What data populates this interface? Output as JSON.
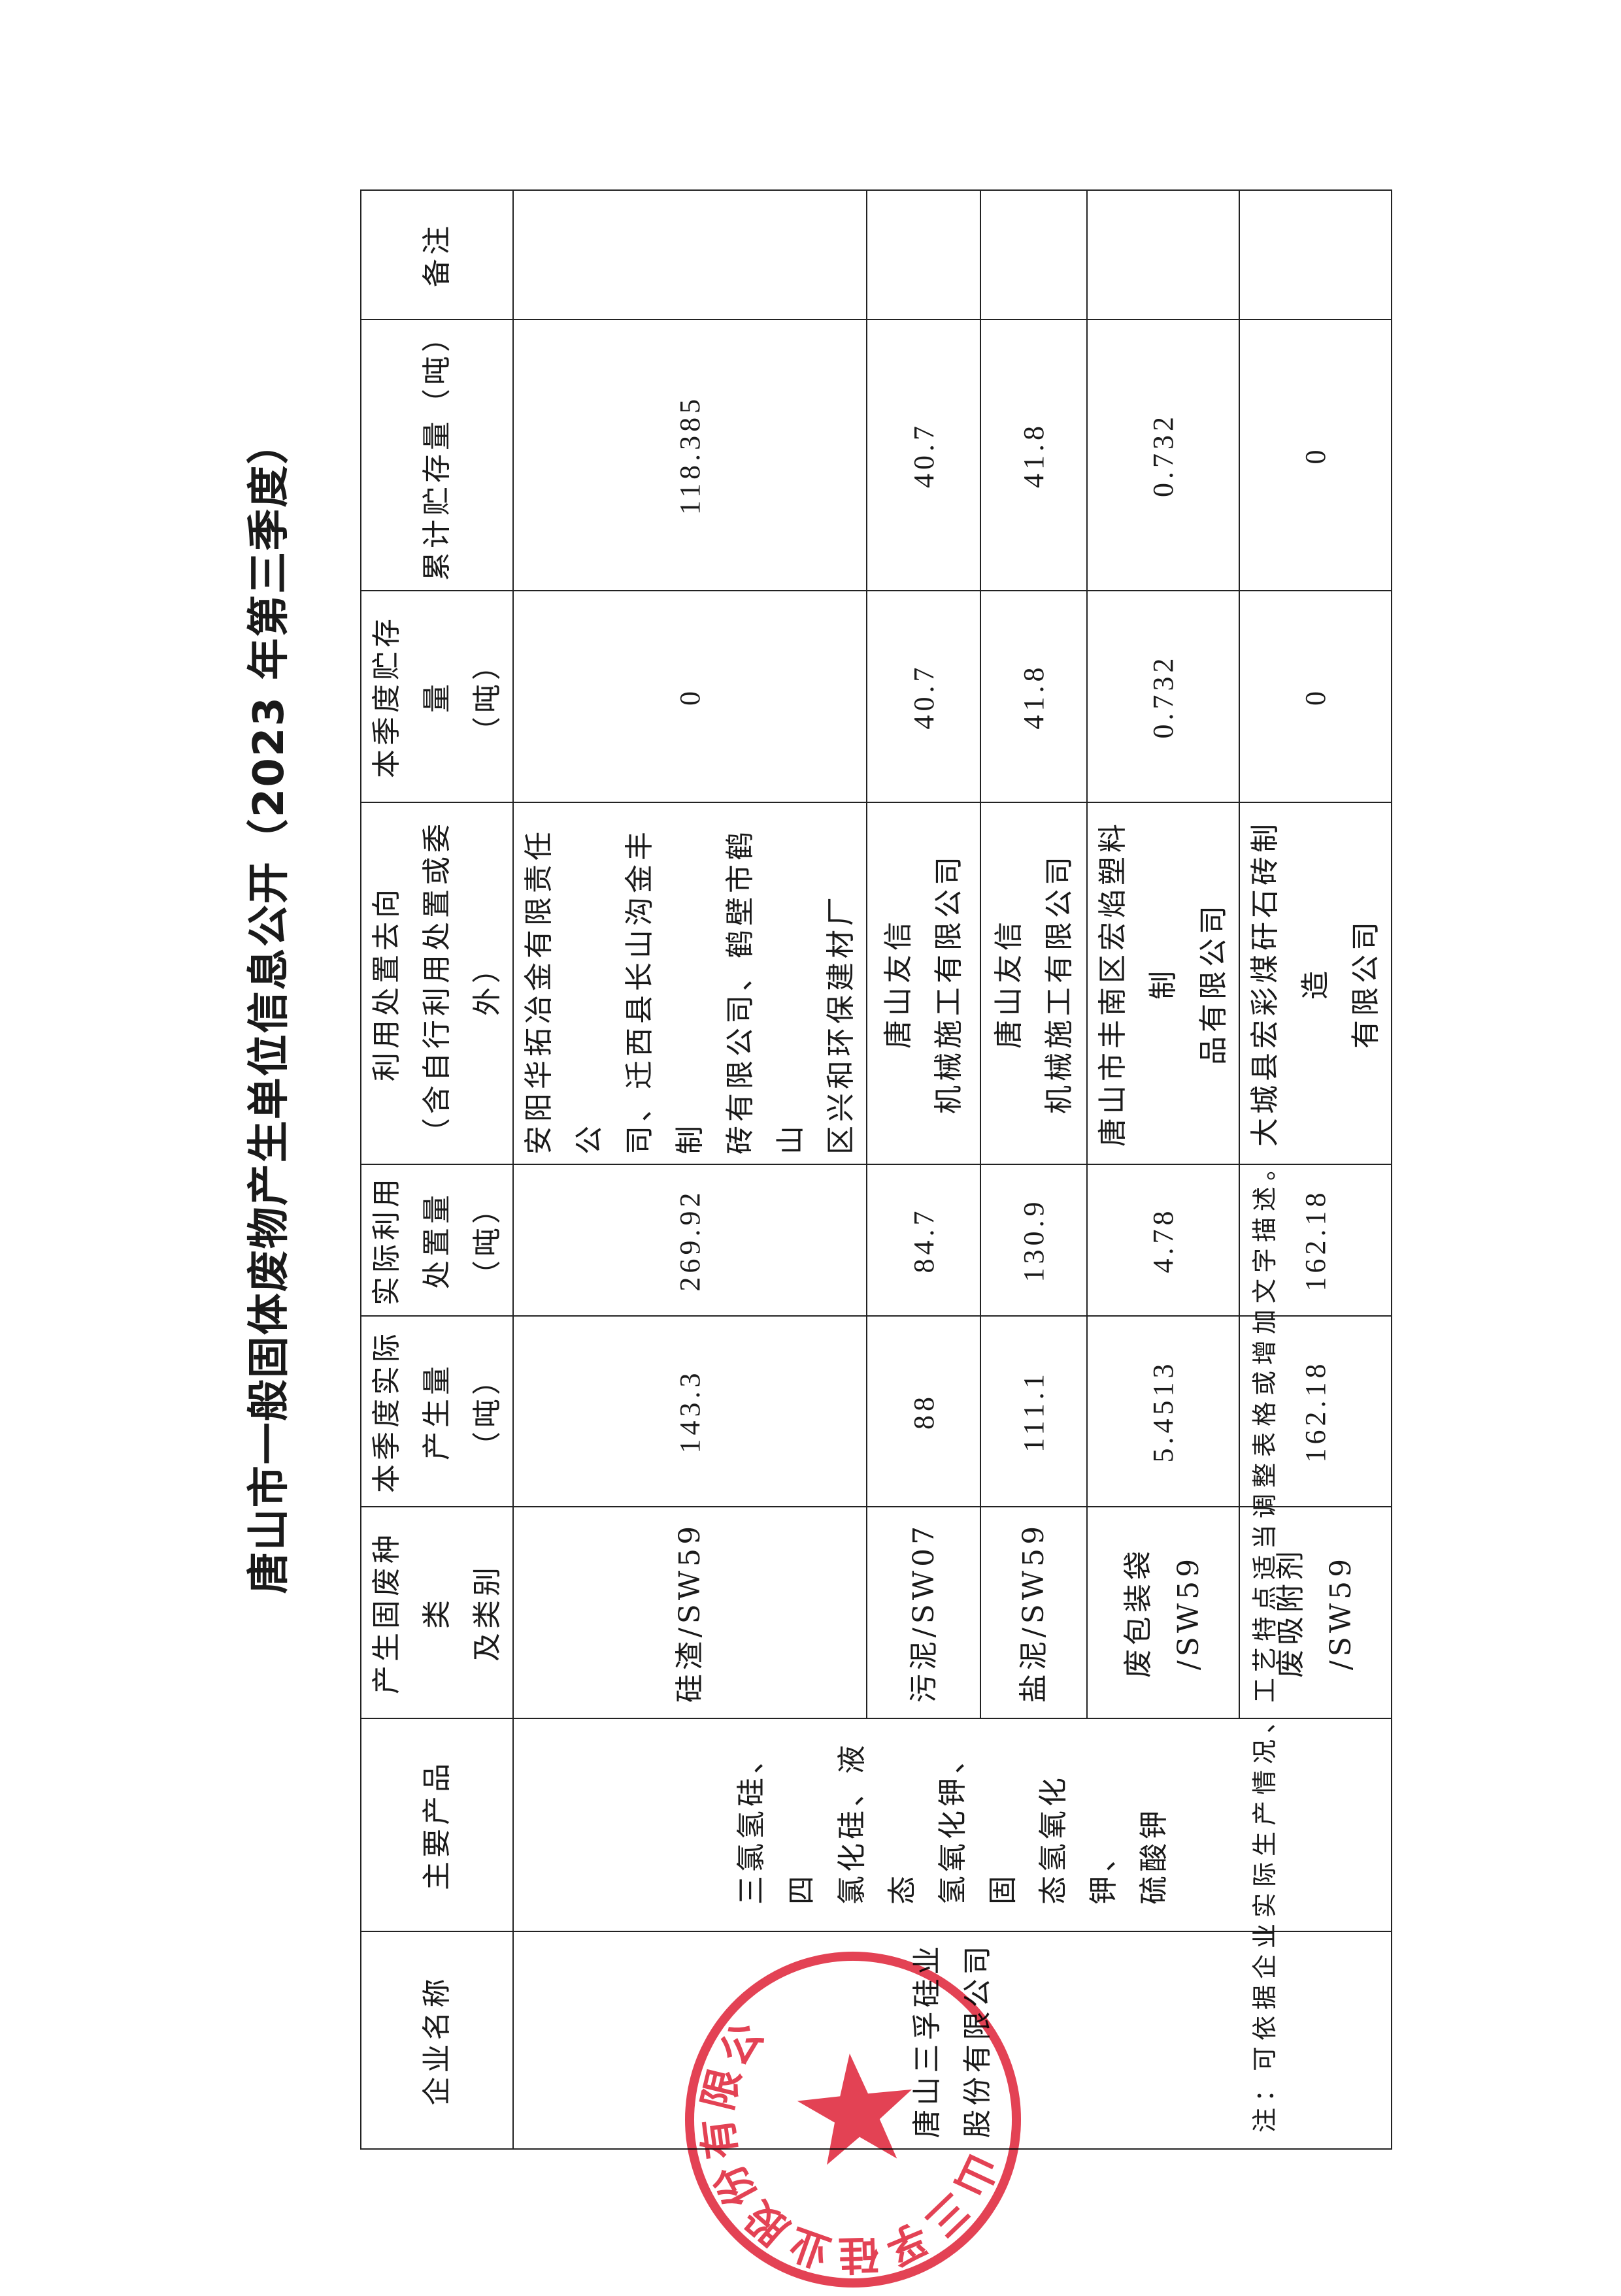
{
  "title": "唐山市一般固体废物产生单位信息公开（2023 年第三季度）",
  "table": {
    "headers": [
      "企业名称",
      "主要产品",
      "产生固废种类\n及类别",
      "本季度实际\n产生量（吨）",
      "实际利用\n处置量\n（吨）",
      "利用处置去向\n（含自行利用处置或委\n外）",
      "本季度贮存量\n（吨）",
      "累计贮存量（吨）",
      "备注"
    ],
    "company_name": "唐山三孚硅业\n股份有限公司",
    "main_products": "三氯氢硅、四\n氯化硅、液态\n氢氧化钾、固\n态氢氧化钾、\n硫酸钾",
    "rows": [
      {
        "waste_type": "硅渣/SW59",
        "generated": "143.3",
        "utilized": "269.92",
        "destination": "安阳华拓冶金有限责任公\n司、迁西县长山沟金丰制\n砖有限公司、鹤壁市鹤山\n区兴和环保建材厂",
        "quarter_storage": "0",
        "total_storage": "118.385",
        "remark": ""
      },
      {
        "waste_type": "污泥/SW07",
        "generated": "88",
        "utilized": "84.7",
        "destination": "唐山友信\n机械施工有限公司",
        "quarter_storage": "40.7",
        "total_storage": "40.7",
        "remark": ""
      },
      {
        "waste_type": "盐泥/SW59",
        "generated": "111.1",
        "utilized": "130.9",
        "destination": "唐山友信\n机械施工有限公司",
        "quarter_storage": "41.8",
        "total_storage": "41.8",
        "remark": ""
      },
      {
        "waste_type": "废包装袋\n/SW59",
        "generated": "5.4513",
        "utilized": "4.78",
        "destination": "唐山市丰南区宏焰塑料制\n品有限公司",
        "quarter_storage": "0.732",
        "total_storage": "0.732",
        "remark": ""
      },
      {
        "waste_type": "废吸附剂\n/SW59",
        "generated": "162.18",
        "utilized": "162.18",
        "destination": "大城县宏彩煤矸石砖制造\n有限公司",
        "quarter_storage": "0",
        "total_storage": "0",
        "remark": ""
      }
    ]
  },
  "note": "注：可依据企业实际生产情况、工艺特点适当调整表格或增加文字描述。",
  "seal": {
    "text": "唐山三孚硅业股份有限公司",
    "color": "#e0283c"
  }
}
